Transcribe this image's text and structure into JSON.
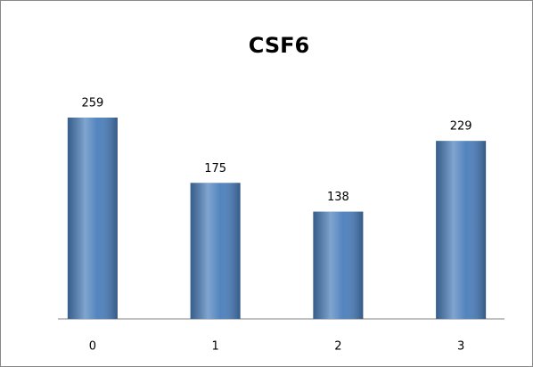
{
  "chart_data": {
    "type": "bar",
    "title": "CSF6",
    "categories": [
      "0",
      "1",
      "2",
      "3"
    ],
    "values": [
      259,
      175,
      138,
      229
    ],
    "color": "#4a7ebb"
  }
}
